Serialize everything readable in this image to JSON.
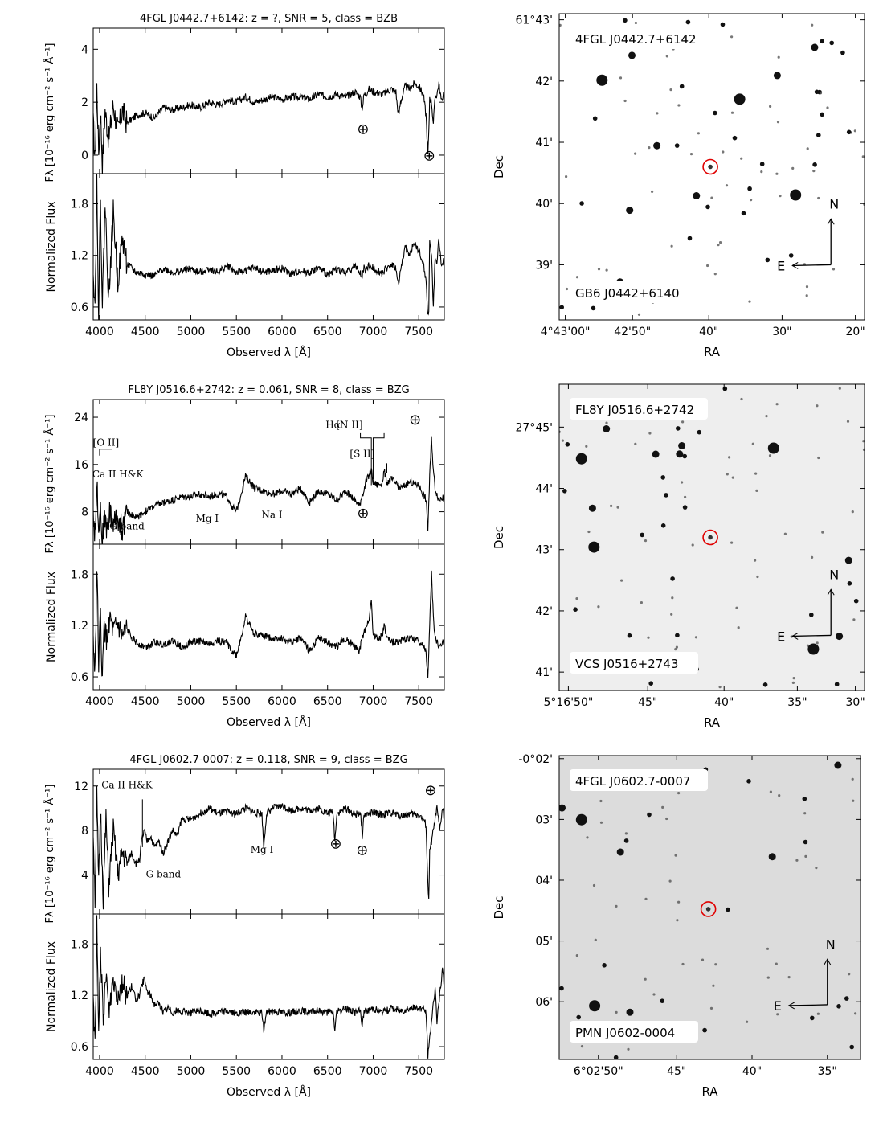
{
  "axis_labels": {
    "flux_y": "Fλ [10⁻¹⁶ erg cm⁻² s⁻¹ Å⁻¹]",
    "norm_y": "Normalized Flux",
    "x": "Observed λ [Å]",
    "dec": "Dec",
    "ra": "RA"
  },
  "x_ticks": [
    "4000",
    "4500",
    "5000",
    "5500",
    "6000",
    "6500",
    "7000",
    "7500"
  ],
  "chart_data": [
    {
      "type": "line",
      "title": "4FGL J0442.7+6142: z = ?, SNR = 5, class = BZB",
      "xlim": [
        3930,
        7780
      ],
      "flux": {
        "ylim": [
          -0.7,
          4.8
        ],
        "yticks": [
          "4",
          "2",
          "0"
        ],
        "x": [
          3930,
          3950,
          3970,
          3990,
          4010,
          4030,
          4060,
          4100,
          4150,
          4200,
          4250,
          4300,
          4400,
          4500,
          4600,
          4700,
          4800,
          4900,
          5000,
          5100,
          5200,
          5300,
          5400,
          5500,
          5600,
          5700,
          5800,
          5900,
          6000,
          6100,
          6200,
          6300,
          6400,
          6500,
          6600,
          6700,
          6800,
          6860,
          6870,
          6880,
          6890,
          6900,
          6920,
          6950,
          7000,
          7100,
          7200,
          7250,
          7260,
          7280,
          7300,
          7350,
          7400,
          7450,
          7500,
          7550,
          7580,
          7600,
          7610,
          7620,
          7640,
          7660,
          7680,
          7700,
          7720,
          7750,
          7780
        ],
        "y": [
          1.2,
          -0.2,
          2.6,
          0.1,
          1.8,
          -0.3,
          1.7,
          0.6,
          1.9,
          0.9,
          1.7,
          1.2,
          1.5,
          1.6,
          1.4,
          1.8,
          1.7,
          1.8,
          1.9,
          1.8,
          2.0,
          1.9,
          2.1,
          2.0,
          2.2,
          2.0,
          2.1,
          2.2,
          2.1,
          2.2,
          2.2,
          2.1,
          2.3,
          2.2,
          2.3,
          2.2,
          2.4,
          2.2,
          1.9,
          1.8,
          2.0,
          2.3,
          2.3,
          2.5,
          2.4,
          2.3,
          2.5,
          2.4,
          2.0,
          1.5,
          2.0,
          2.6,
          2.5,
          2.7,
          2.6,
          2.3,
          1.5,
          0.0,
          0.8,
          2.2,
          2.0,
          1.2,
          2.2,
          2.3,
          2.7,
          2.0,
          2.5
        ],
        "annotations": [
          {
            "text": "⊕",
            "x": 6890,
            "y": 0.8
          },
          {
            "text": "⊕",
            "x": 7615,
            "y": -0.2
          }
        ]
      },
      "normalized": {
        "ylim": [
          0.45,
          2.15
        ],
        "yticks": [
          "1.8",
          "1.2",
          "0.6"
        ],
        "x": [
          3930,
          3950,
          3970,
          3990,
          4010,
          4030,
          4060,
          4100,
          4150,
          4200,
          4250,
          4300,
          4400,
          4500,
          4600,
          4700,
          4800,
          4900,
          5000,
          5100,
          5200,
          5300,
          5400,
          5500,
          5600,
          5700,
          5800,
          5900,
          6000,
          6100,
          6200,
          6300,
          6400,
          6500,
          6600,
          6700,
          6800,
          6860,
          6870,
          6880,
          6890,
          6900,
          6920,
          6950,
          7000,
          7100,
          7200,
          7250,
          7260,
          7280,
          7300,
          7350,
          7400,
          7450,
          7500,
          7550,
          7580,
          7600,
          7610,
          7620,
          7640,
          7660,
          7680,
          7700,
          7720,
          7750,
          7780
        ],
        "y": [
          1.1,
          0.6,
          2.1,
          0.5,
          1.9,
          0.6,
          1.8,
          0.7,
          1.7,
          0.9,
          1.4,
          1.1,
          1.0,
          0.98,
          0.96,
          1.05,
          1.0,
          1.02,
          1.04,
          1.0,
          1.05,
          1.0,
          1.08,
          1.0,
          1.02,
          1.06,
          1.0,
          1.02,
          1.05,
          0.98,
          1.02,
          1.0,
          1.05,
          0.98,
          1.04,
          1.0,
          1.08,
          1.0,
          0.92,
          0.95,
          1.02,
          1.06,
          1.02,
          1.08,
          1.05,
          1.0,
          1.1,
          1.05,
          0.95,
          0.85,
          1.02,
          1.3,
          1.2,
          1.35,
          1.25,
          1.1,
          0.9,
          0.5,
          0.55,
          1.4,
          1.2,
          0.6,
          1.2,
          1.1,
          1.4,
          1.05,
          1.2
        ]
      }
    },
    {
      "type": "line",
      "title": "FL8Y J0516.6+2742: z = 0.061, SNR = 8, class = BZG",
      "xlim": [
        3930,
        7780
      ],
      "flux": {
        "ylim": [
          2.5,
          27.0
        ],
        "yticks": [
          "24",
          "16",
          "8"
        ],
        "x": [
          3930,
          3950,
          3970,
          3990,
          4010,
          4030,
          4050,
          4080,
          4110,
          4150,
          4200,
          4250,
          4300,
          4400,
          4500,
          4600,
          4700,
          4800,
          4900,
          5000,
          5100,
          5200,
          5300,
          5400,
          5450,
          5500,
          5550,
          5600,
          5700,
          5800,
          5900,
          6000,
          6100,
          6200,
          6250,
          6300,
          6400,
          6500,
          6600,
          6700,
          6800,
          6850,
          6880,
          6900,
          6920,
          6950,
          6980,
          7000,
          7050,
          7100,
          7120,
          7150,
          7200,
          7300,
          7400,
          7500,
          7550,
          7580,
          7600,
          7620,
          7640,
          7660,
          7680,
          7700,
          7720,
          7750,
          7780
        ],
        "y": [
          8,
          4,
          13,
          6,
          9,
          3,
          7,
          5,
          8,
          6,
          7,
          5,
          8,
          7,
          8,
          9,
          9.5,
          10,
          10.5,
          10.5,
          11,
          10.5,
          11,
          10.5,
          9,
          8,
          11,
          14,
          12,
          11.5,
          11,
          11.5,
          11,
          12,
          11,
          9.5,
          11.5,
          11,
          10,
          11.5,
          10,
          9,
          11,
          11.5,
          13,
          14,
          15,
          13,
          12.5,
          13,
          15,
          13,
          13.5,
          12,
          13,
          12.5,
          11,
          10,
          5,
          14,
          20.5,
          15,
          12,
          11,
          10,
          10.5,
          10
        ],
        "annotations": [
          {
            "text": "[O II]",
            "x": 4070,
            "y": 19.2
          },
          {
            "text": "Ca II H&K",
            "x": 4200,
            "y": 13.8
          },
          {
            "text": "G band",
            "x": 4300,
            "y": 5.0
          },
          {
            "text": "Mg I",
            "x": 5180,
            "y": 6.3
          },
          {
            "text": "Na I",
            "x": 5890,
            "y": 6.9
          },
          {
            "text": "Hα",
            "x": 6560,
            "y": 22.2
          },
          {
            "text": "[N II]",
            "x": 6740,
            "y": 22.2
          },
          {
            "text": "[S II]",
            "x": 6880,
            "y": 17.3
          },
          {
            "text": "⊕",
            "x": 6890,
            "y": 6.9
          },
          {
            "text": "⊕",
            "x": 7460,
            "y": 22.8
          }
        ]
      },
      "normalized": {
        "ylim": [
          0.45,
          2.15
        ],
        "yticks": [
          "1.8",
          "1.2",
          "0.6"
        ],
        "x": [
          3930,
          3950,
          3970,
          3990,
          4010,
          4030,
          4050,
          4080,
          4110,
          4150,
          4200,
          4250,
          4300,
          4400,
          4500,
          4600,
          4700,
          4800,
          4900,
          5000,
          5100,
          5200,
          5300,
          5400,
          5450,
          5500,
          5550,
          5600,
          5700,
          5800,
          5900,
          6000,
          6100,
          6200,
          6250,
          6300,
          6400,
          6500,
          6600,
          6700,
          6800,
          6850,
          6880,
          6900,
          6920,
          6950,
          6980,
          7000,
          7050,
          7100,
          7120,
          7150,
          7200,
          7300,
          7400,
          7500,
          7550,
          7580,
          7600,
          7620,
          7640,
          7660,
          7680,
          7700,
          7720,
          7750,
          7780
        ],
        "y": [
          1.0,
          0.7,
          1.9,
          0.8,
          1.3,
          0.55,
          1.2,
          1.0,
          1.3,
          1.1,
          1.2,
          1.05,
          1.15,
          1.0,
          0.95,
          1.0,
          0.98,
          1.02,
          0.95,
          1.0,
          1.02,
          0.98,
          1.02,
          1.0,
          0.9,
          0.85,
          1.05,
          1.3,
          1.1,
          1.08,
          1.05,
          1.05,
          1.0,
          1.05,
          1.0,
          0.9,
          1.05,
          1.0,
          0.95,
          1.05,
          0.95,
          0.9,
          1.05,
          1.1,
          1.2,
          1.25,
          1.5,
          1.1,
          1.05,
          1.08,
          1.2,
          1.05,
          1.0,
          1.02,
          1.05,
          1.02,
          0.95,
          0.9,
          0.6,
          1.2,
          1.8,
          1.3,
          1.05,
          1.0,
          0.95,
          1.0,
          1.0
        ]
      }
    },
    {
      "type": "line",
      "title": "4FGL J0602.7-0007: z = 0.118, SNR = 9, class = BZG",
      "xlim": [
        3930,
        7780
      ],
      "flux": {
        "ylim": [
          0.5,
          13.5
        ],
        "yticks": [
          "12",
          "8",
          "4"
        ],
        "x": [
          3930,
          3950,
          3970,
          3990,
          4010,
          4040,
          4070,
          4100,
          4150,
          4200,
          4250,
          4300,
          4350,
          4400,
          4440,
          4460,
          4490,
          4520,
          4560,
          4600,
          4650,
          4700,
          4750,
          4800,
          4850,
          4900,
          5000,
          5100,
          5200,
          5300,
          5400,
          5500,
          5600,
          5700,
          5780,
          5800,
          5830,
          5900,
          6000,
          6100,
          6200,
          6300,
          6400,
          6500,
          6560,
          6580,
          6600,
          6700,
          6800,
          6860,
          6880,
          6900,
          7000,
          7100,
          7200,
          7300,
          7400,
          7500,
          7550,
          7580,
          7600,
          7610,
          7620,
          7650,
          7680,
          7700,
          7730,
          7760,
          7780
        ],
        "y": [
          8,
          2,
          11,
          3,
          10,
          2,
          9,
          3,
          8,
          4,
          6,
          5,
          6,
          5,
          5.5,
          7,
          8,
          7,
          7.5,
          6.5,
          7,
          6,
          7,
          8,
          7.5,
          9,
          9,
          9.5,
          10,
          9.5,
          9.7,
          9.5,
          10,
          9.6,
          9.5,
          6.5,
          9.5,
          10,
          10.2,
          9.8,
          10,
          9.8,
          10,
          9.5,
          9.7,
          7,
          9.5,
          10,
          9.4,
          9.6,
          7.5,
          9.4,
          9.6,
          9.4,
          9.6,
          9.3,
          9.5,
          9.4,
          9.0,
          8.5,
          3.0,
          2,
          6,
          7.5,
          9,
          10,
          8,
          10,
          9
        ],
        "annotations": [
          {
            "text": "Ca II H&K",
            "x": 4300,
            "y": 11.8
          },
          {
            "text": "G band",
            "x": 4700,
            "y": 3.8
          },
          {
            "text": "Mg I",
            "x": 5780,
            "y": 6.0
          },
          {
            "text": "⊕",
            "x": 6590,
            "y": 6.4
          },
          {
            "text": "⊕",
            "x": 6880,
            "y": 5.8
          },
          {
            "text": "⊕",
            "x": 7630,
            "y": 11.2
          }
        ]
      },
      "normalized": {
        "ylim": [
          0.45,
          2.15
        ],
        "yticks": [
          "1.8",
          "1.2",
          "0.6"
        ],
        "x": [
          3930,
          3950,
          3970,
          3990,
          4010,
          4040,
          4070,
          4100,
          4150,
          4200,
          4250,
          4300,
          4350,
          4400,
          4440,
          4460,
          4490,
          4520,
          4560,
          4600,
          4650,
          4700,
          4750,
          4800,
          4850,
          4900,
          5000,
          5100,
          5200,
          5300,
          5400,
          5500,
          5600,
          5700,
          5780,
          5800,
          5830,
          5900,
          6000,
          6100,
          6200,
          6300,
          6400,
          6500,
          6560,
          6580,
          6600,
          6700,
          6800,
          6860,
          6880,
          6900,
          7000,
          7100,
          7200,
          7300,
          7400,
          7500,
          7550,
          7580,
          7600,
          7610,
          7620,
          7650,
          7680,
          7700,
          7730,
          7760,
          7780
        ],
        "y": [
          1.2,
          0.6,
          2.0,
          0.7,
          1.8,
          0.8,
          1.5,
          1.0,
          1.4,
          1.2,
          1.35,
          1.2,
          1.3,
          1.15,
          1.2,
          1.3,
          1.4,
          1.25,
          1.2,
          1.1,
          1.1,
          1.0,
          1.05,
          1.0,
          1.02,
          1.0,
          1.0,
          1.02,
          0.98,
          1.0,
          1.02,
          0.98,
          1.0,
          1.0,
          1.0,
          0.8,
          1.0,
          1.02,
          1.0,
          1.0,
          1.02,
          1.0,
          1.02,
          1.0,
          1.0,
          0.8,
          1.0,
          1.05,
          1.0,
          1.02,
          0.85,
          1.0,
          1.05,
          1.0,
          1.05,
          1.02,
          1.05,
          1.05,
          1.05,
          1.0,
          0.5,
          0.55,
          0.7,
          1.0,
          1.3,
          0.9,
          1.2,
          1.5,
          1.3
        ]
      }
    }
  ],
  "images": [
    {
      "target_label": "4FGL J0442.7+6142",
      "counterpart_label": "GB6 J0442+6140",
      "ra_ticks": [
        "4°43'00\"",
        "42'50\"",
        "40\"",
        "30\"",
        "20\""
      ],
      "dec_ticks": [
        "61°43'",
        "42'",
        "41'",
        "40'",
        "39'"
      ],
      "compass": {
        "north": "N",
        "east": "E"
      },
      "background": "#ffffff"
    },
    {
      "target_label": "FL8Y J0516.6+2742",
      "counterpart_label": "VCS J0516+2743",
      "ra_ticks": [
        "5°16'50\"",
        "45\"",
        "40\"",
        "35\"",
        "30\""
      ],
      "dec_ticks": [
        "27°45'",
        "44'",
        "43'",
        "42'",
        "41'"
      ],
      "compass": {
        "north": "N",
        "east": "E"
      },
      "background": "#eeeeee"
    },
    {
      "target_label": "4FGL J0602.7-0007",
      "counterpart_label": "PMN J0602-0004",
      "ra_ticks": [
        "6°02'50\"",
        "45\"",
        "40\"",
        "35\""
      ],
      "dec_ticks": [
        "-0°02'",
        "03'",
        "04'",
        "05'",
        "06'"
      ],
      "compass": {
        "north": "N",
        "east": "E"
      },
      "background": "#dcdcdc"
    }
  ],
  "style": {
    "line_color": "#000000",
    "marker_color": "#e00000"
  }
}
